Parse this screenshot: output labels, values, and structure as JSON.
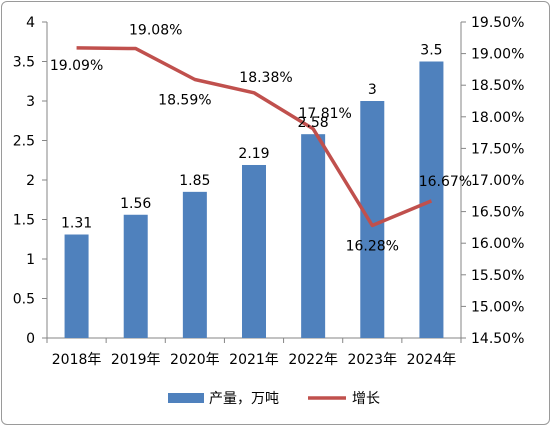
{
  "chart_data": {
    "type": "bar",
    "categories": [
      "2018年",
      "2019年",
      "2020年",
      "2021年",
      "2022年",
      "2023年",
      "2024年"
    ],
    "series": [
      {
        "name": "产量，万吨",
        "type": "bar",
        "axis": "left",
        "values": [
          1.31,
          1.56,
          1.85,
          2.19,
          2.58,
          3,
          3.5
        ],
        "labels": [
          "1.31",
          "1.56",
          "1.85",
          "2.19",
          "2.58",
          "3",
          "3.5"
        ],
        "color": "#4f81bd"
      },
      {
        "name": "增长",
        "type": "line",
        "axis": "right",
        "values": [
          19.09,
          19.08,
          18.59,
          18.38,
          17.81,
          16.28,
          16.67
        ],
        "labels": [
          "19.09%",
          "19.08%",
          "18.59%",
          "18.38%",
          "17.81%",
          "16.28%",
          "16.67%"
        ],
        "color": "#c0504d"
      }
    ],
    "ylim": [
      0,
      4
    ],
    "y_ticks": [
      "0",
      "0.5",
      "1",
      "1.5",
      "2",
      "2.5",
      "3",
      "3.5",
      "4"
    ],
    "y2lim": [
      14.5,
      19.5
    ],
    "y2_ticks": [
      "14.50%",
      "15.00%",
      "15.50%",
      "16.00%",
      "16.50%",
      "17.00%",
      "17.50%",
      "18.00%",
      "18.50%",
      "19.00%",
      "19.50%"
    ],
    "grid": false,
    "legend": "bottom"
  }
}
